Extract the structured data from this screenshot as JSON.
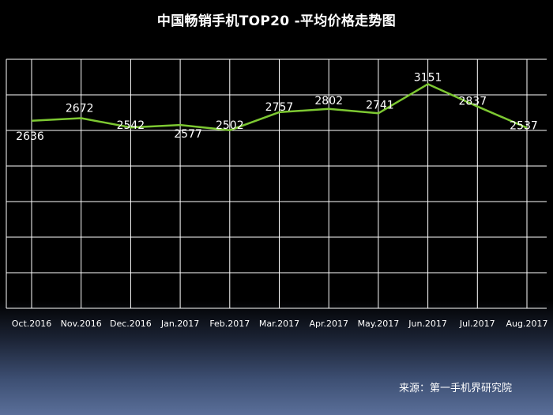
{
  "chart_data": {
    "type": "line",
    "title": "中国畅销手机TOP20 -平均价格走势图",
    "categories": [
      "Oct.2016",
      "Nov.2016",
      "Dec.2016",
      "Jan.2017",
      "Feb.2017",
      "Mar.2017",
      "Apr.2017",
      "May.2017",
      "Jun.2017",
      "Jul.2017",
      "Aug.2017"
    ],
    "series": [
      {
        "values": [
          2636,
          2672,
          2542,
          2577,
          2502,
          2757,
          2802,
          2741,
          3151,
          2837,
          2537
        ],
        "color": "#7dc832"
      }
    ],
    "ylim": [
      0,
      3500
    ],
    "ytick_step": 500,
    "xlabel": "",
    "ylabel": "",
    "grid": true,
    "legend": "none",
    "colors": {
      "line": "#7dc832",
      "grid": "#ffffff",
      "text": "#ffffff"
    }
  },
  "source_note": "来源：第一手机界研究院"
}
